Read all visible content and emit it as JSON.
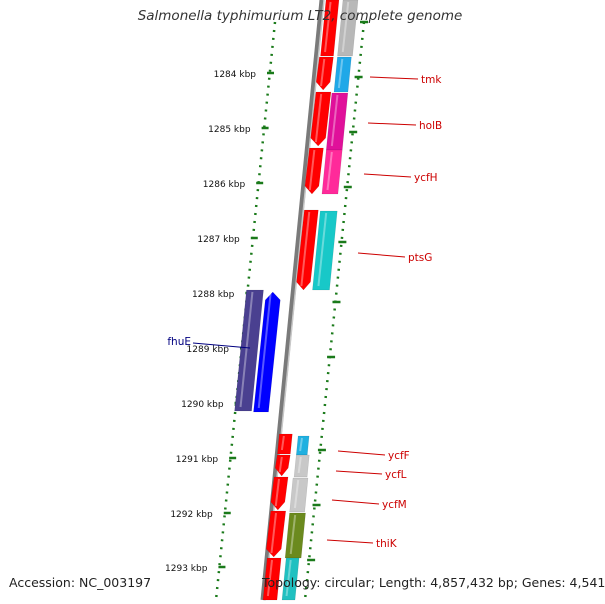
{
  "header": {
    "title": "Salmonella typhimurium LT2, complete genome"
  },
  "footer": {
    "accession": "Accession: NC_003197",
    "topology": "Topology: circular; Length: 4,857,432 bp; Genes: 4,541"
  },
  "ticks": [
    "1284 kbp",
    "1285 kbp",
    "1286 kbp",
    "1287 kbp",
    "1288 kbp",
    "1289 kbp",
    "1290 kbp",
    "1291 kbp",
    "1292 kbp",
    "1293 kbp"
  ],
  "genes": [
    {
      "label": "tmk",
      "color": "#cc0000"
    },
    {
      "label": "holB",
      "color": "#cc0000"
    },
    {
      "label": "ycfH",
      "color": "#cc0000"
    },
    {
      "label": "ptsG",
      "color": "#cc0000"
    },
    {
      "label": "fhuE",
      "color": "#000080"
    },
    {
      "label": "ycfF",
      "color": "#cc0000"
    },
    {
      "label": "ycfL",
      "color": "#cc0000"
    },
    {
      "label": "ycfM",
      "color": "#cc0000"
    },
    {
      "label": "thiK",
      "color": "#cc0000"
    }
  ],
  "colors": {
    "forward_strand": "#ff0000",
    "reverse_strand": "#0000ff",
    "fhuE_cog": "#4a4090",
    "tick_green": "#1a7a1a",
    "backbone": "#888888"
  }
}
